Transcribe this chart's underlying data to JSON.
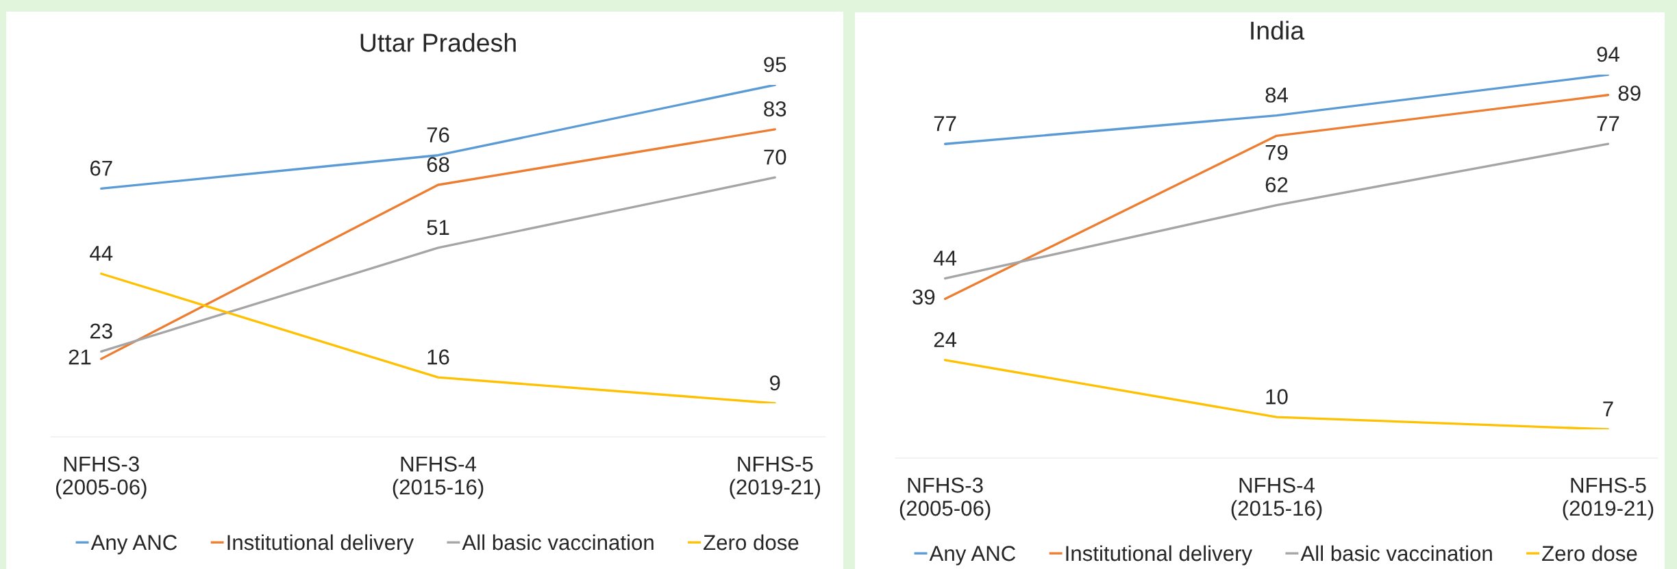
{
  "chart_data": [
    {
      "type": "line",
      "title": "Uttar Pradesh",
      "categories": [
        "NFHS-3\n(2005-06)",
        "NFHS-4\n(2015-16)",
        "NFHS-5\n(2019-21)"
      ],
      "series": [
        {
          "name": "Any ANC",
          "color": "#5b9bd5",
          "values": [
            67,
            76,
            95
          ]
        },
        {
          "name": "Institutional delivery",
          "color": "#ed7d31",
          "values": [
            21,
            68,
            83
          ]
        },
        {
          "name": "All basic vaccination",
          "color": "#a5a5a5",
          "values": [
            23,
            51,
            70
          ]
        },
        {
          "name": "Zero dose",
          "color": "#ffc000",
          "values": [
            44,
            16,
            9
          ]
        }
      ],
      "tick_labels": "x",
      "data_labels": true,
      "legend": "bottom",
      "line_style": "solid"
    },
    {
      "type": "line",
      "title": "India",
      "categories": [
        "NFHS-3\n(2005-06)",
        "NFHS-4\n(2015-16)",
        "NFHS-5\n(2019-21)"
      ],
      "series": [
        {
          "name": "Any ANC",
          "color": "#5b9bd5",
          "values": [
            77,
            84,
            94
          ]
        },
        {
          "name": "Institutional delivery",
          "color": "#ed7d31",
          "values": [
            39,
            79,
            89
          ]
        },
        {
          "name": "All basic vaccination",
          "color": "#a5a5a5",
          "values": [
            44,
            62,
            77
          ]
        },
        {
          "name": "Zero dose",
          "color": "#ffc000",
          "values": [
            24,
            10,
            7
          ]
        }
      ],
      "tick_labels": "x",
      "data_labels": true,
      "legend": "bottom",
      "line_style": "solid"
    }
  ]
}
